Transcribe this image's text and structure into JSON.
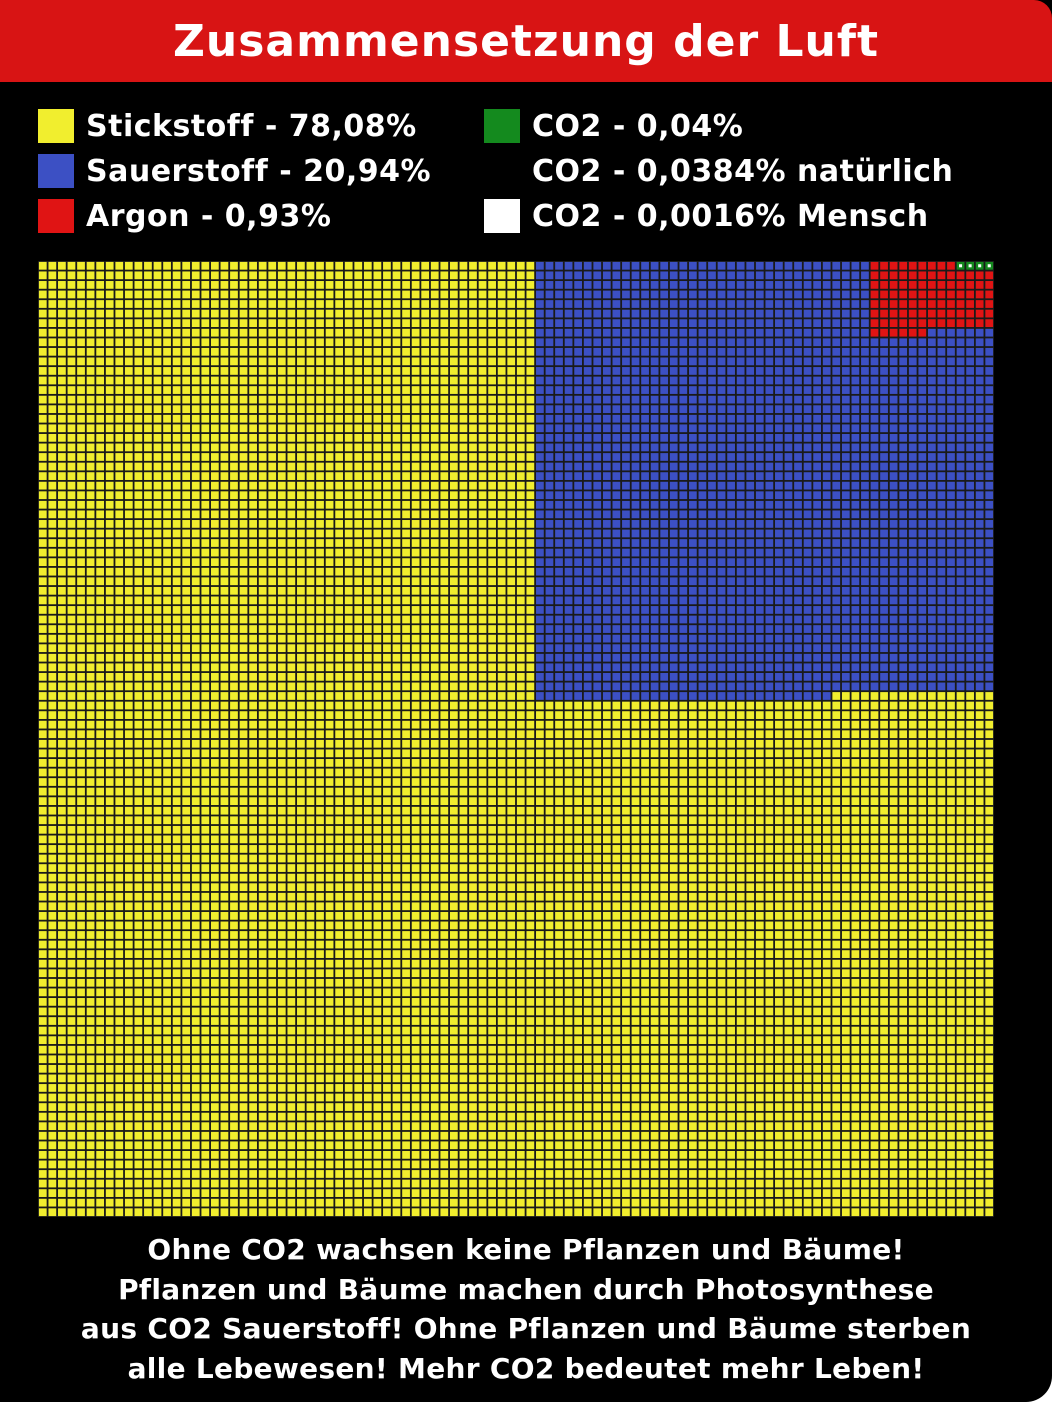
{
  "title": "Zusammensetzung der Luft",
  "legend": [
    {
      "label": "Stickstoff - 78,08%",
      "color": "#f1ee2e",
      "icon": "yellow-square"
    },
    {
      "label": "Sauerstoff - 20,94%",
      "color": "#3c50c4",
      "icon": "blue-square"
    },
    {
      "label": "Argon - 0,93%",
      "color": "#e01414",
      "icon": "red-square"
    },
    {
      "label": "CO2 - 0,04%",
      "color": "#148a1e",
      "icon": "green-square"
    },
    {
      "label": "CO2 - 0,0384% natürlich",
      "color": null,
      "icon": null
    },
    {
      "label": "CO2 - 0,0016% Mensch",
      "color": "#ffffff",
      "icon": "white-square"
    }
  ],
  "chart_data": {
    "type": "waffle",
    "grid_size": [
      100,
      100
    ],
    "total_cells": 10000,
    "cell_unit_percent": 0.01,
    "categories": [
      "Stickstoff",
      "Sauerstoff",
      "Argon",
      "CO2"
    ],
    "values_percent": [
      78.08,
      20.94,
      0.93,
      0.04
    ],
    "co2_breakdown": [
      {
        "name": "natürlich",
        "value_percent": 0.0384
      },
      {
        "name": "Mensch",
        "value_percent": 0.0016
      }
    ],
    "colors": {
      "Stickstoff": "#f1ee2e",
      "Sauerstoff": "#3c50c4",
      "Argon": "#e01414",
      "CO2": "#148a1e",
      "Mensch": "#ffffff",
      "gridline": "#1a1a1a"
    }
  },
  "footer": {
    "lines": [
      "Ohne CO2 wachsen keine Pflanzen und Bäume!",
      "Pflanzen und Bäume machen durch Photosynthese",
      "aus CO2 Sauerstoff! Ohne Pflanzen und Bäume sterben",
      "alle Lebewesen! Mehr CO2 bedeutet mehr Leben!"
    ]
  }
}
